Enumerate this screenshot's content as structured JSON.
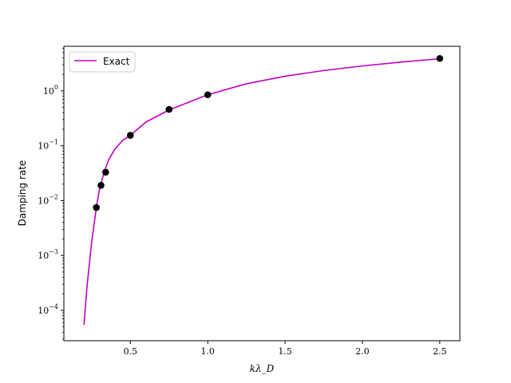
{
  "chart_data": {
    "type": "line",
    "xlabel": "kλ_D",
    "ylabel": "Damping rate",
    "xlim": [
      0.07,
      2.63
    ],
    "ylim": [
      2.8e-05,
      6.5
    ],
    "yscale": "log",
    "grid": false,
    "legend_position": "upper-left",
    "colors": {
      "exact_line": "#bf00bf",
      "points": "#000000"
    },
    "x_ticks": [
      0.5,
      1.0,
      1.5,
      2.0,
      2.5
    ],
    "x_tick_labels": [
      "0.5",
      "1.0",
      "1.5",
      "2.0",
      "2.5"
    ],
    "y_ticks": [
      0.0001,
      0.001,
      0.01,
      0.1,
      1
    ],
    "y_tick_exponents": [
      "−4",
      "−3",
      "−2",
      "−1",
      "0"
    ],
    "series": [
      {
        "name": "Exact",
        "kind": "line",
        "x": [
          0.2,
          0.22,
          0.25,
          0.28,
          0.3,
          0.33,
          0.36,
          0.4,
          0.45,
          0.5,
          0.6,
          0.75,
          1.0,
          1.25,
          1.5,
          1.75,
          2.0,
          2.25,
          2.5
        ],
        "y": [
          5.5e-05,
          0.00028,
          0.0018,
          0.0075,
          0.016,
          0.033,
          0.056,
          0.087,
          0.125,
          0.155,
          0.27,
          0.45,
          0.85,
          1.35,
          1.85,
          2.35,
          2.85,
          3.35,
          3.85
        ]
      },
      {
        "kind": "scatter",
        "x": [
          0.28,
          0.31,
          0.34,
          0.5,
          0.75,
          1.0,
          2.5
        ],
        "y": [
          0.0075,
          0.019,
          0.033,
          0.155,
          0.46,
          0.85,
          3.9
        ]
      }
    ]
  }
}
